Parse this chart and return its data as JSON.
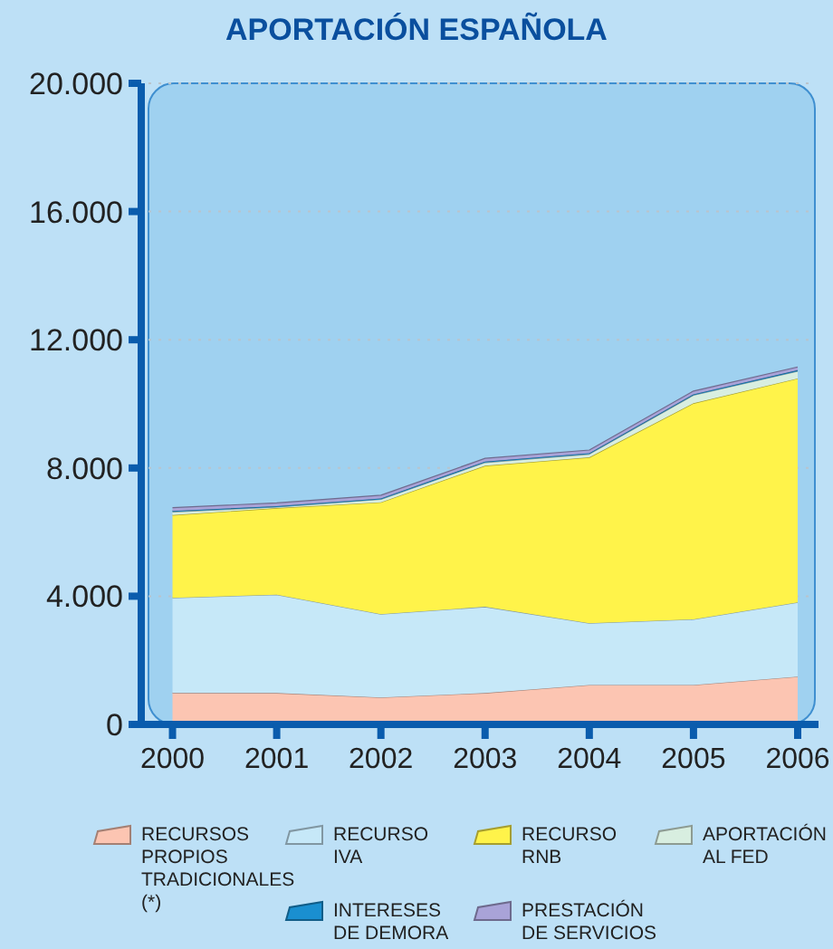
{
  "chart_data": {
    "type": "area",
    "stacked": true,
    "title": "APORTACIÓN ESPAÑOLA",
    "x": [
      2000,
      2001,
      2002,
      2003,
      2004,
      2005,
      2006
    ],
    "series": [
      {
        "name": "RECURSOS PROPIOS TRADICIONALES (*)",
        "color": "#fcc5b2",
        "values": [
          980,
          980,
          840,
          980,
          1230,
          1230,
          1490
        ]
      },
      {
        "name": "RECURSO IVA",
        "color": "#c6e8f8",
        "values": [
          2970,
          3070,
          2600,
          2690,
          1930,
          2050,
          2320
        ]
      },
      {
        "name": "RECURSO RNB",
        "color": "#fff34a",
        "values": [
          2580,
          2700,
          3490,
          4400,
          5170,
          6740,
          6980
        ]
      },
      {
        "name": "APORTACIÓN AL FED",
        "color": "#d8eee0",
        "values": [
          100,
          30,
          90,
          100,
          100,
          250,
          230
        ]
      },
      {
        "name": "INTERESES DE DEMORA",
        "color": "#1a8fd0",
        "values": [
          30,
          30,
          30,
          30,
          30,
          30,
          30
        ]
      },
      {
        "name": "PRESTACIÓN DE SERVICIOS",
        "color": "#a9a3d8",
        "values": [
          100,
          100,
          100,
          100,
          100,
          100,
          100
        ]
      }
    ],
    "xlim": [
      1999.7,
      2006.2
    ],
    "xticks": [
      2000,
      2001,
      2002,
      2003,
      2004,
      2005,
      2006
    ],
    "ylim": [
      0,
      20000
    ],
    "yticks": [
      {
        "value": 0,
        "label": "0"
      },
      {
        "value": 4000,
        "label": "4.000"
      },
      {
        "value": 8000,
        "label": "8.000"
      },
      {
        "value": 12000,
        "label": "12.000"
      },
      {
        "value": 16000,
        "label": "16.000"
      },
      {
        "value": 20000,
        "label": "20.000"
      }
    ],
    "grid": "y",
    "legend": "bottom"
  }
}
